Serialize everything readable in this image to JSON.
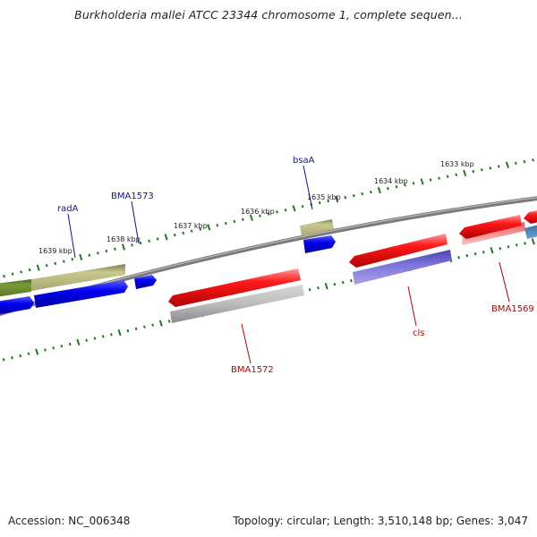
{
  "title": "Burkholderia mallei ATCC 23344 chromosome 1, complete sequen...",
  "footer": {
    "accession": "Accession: NC_006348",
    "info": "Topology: circular; Length: 3,510,148 bp; Genes: 3,047"
  },
  "ruler_labels": [
    "1639 kbp",
    "1638 kbp",
    "1637 kbp",
    "1636 kbp",
    "1635 kbp",
    "1634 kbp",
    "1633 kbp"
  ],
  "gene_labels": {
    "radA": "radA",
    "BMA1573": "BMA1573",
    "bsaA": "bsaA",
    "BMA1572": "BMA1572",
    "cls": "cls",
    "BMA1569": "BMA1569"
  },
  "colors": {
    "forward_strand": "#ff0000",
    "reverse_strand": "#0000ee",
    "olive": "#b8b878",
    "dark_green": "#6b8a2e",
    "gray": "#b0b0b0",
    "slate_blue": "#6a62c8",
    "pink": "#f08080",
    "steel_blue": "#4a88c0",
    "ruler": "#1e7a1e",
    "backbone": "#808080"
  }
}
